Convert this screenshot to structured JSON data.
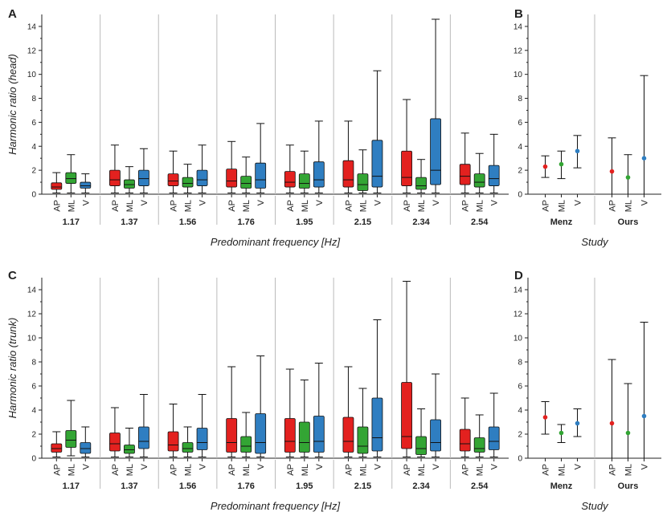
{
  "chart_data": [
    {
      "panel": "A",
      "type": "box",
      "ylabel": "Harmonic ratio (head)",
      "xlabel": "Predominant frequency [Hz]",
      "ylim": [
        0,
        15
      ],
      "yticks": [
        0,
        2,
        4,
        6,
        8,
        10,
        12,
        14
      ],
      "grid": "vertical group separators",
      "groups": [
        "1.17",
        "1.37",
        "1.56",
        "1.76",
        "1.95",
        "2.15",
        "2.34",
        "2.54"
      ],
      "categories": [
        "AP",
        "ML",
        "V"
      ],
      "boxes": [
        [
          [
            0.1,
            0.4,
            0.6,
            0.95,
            1.8
          ],
          [
            0.1,
            0.9,
            1.3,
            1.8,
            3.3
          ],
          [
            0.1,
            0.5,
            0.7,
            1.0,
            1.7
          ]
        ],
        [
          [
            0.1,
            0.7,
            1.2,
            2.0,
            4.1
          ],
          [
            0.1,
            0.5,
            0.8,
            1.2,
            2.3
          ],
          [
            0.1,
            0.7,
            1.3,
            2.0,
            3.8
          ]
        ],
        [
          [
            0.1,
            0.7,
            1.1,
            1.7,
            3.6
          ],
          [
            0.1,
            0.6,
            0.9,
            1.4,
            2.5
          ],
          [
            0.1,
            0.7,
            1.2,
            2.0,
            4.1
          ]
        ],
        [
          [
            0.1,
            0.6,
            1.1,
            2.1,
            4.4
          ],
          [
            0.1,
            0.5,
            0.9,
            1.5,
            3.1
          ],
          [
            0.1,
            0.5,
            1.2,
            2.6,
            5.9
          ]
        ],
        [
          [
            0.1,
            0.6,
            1.0,
            1.9,
            4.1
          ],
          [
            0.1,
            0.5,
            0.9,
            1.7,
            3.6
          ],
          [
            0.1,
            0.6,
            1.2,
            2.7,
            6.1
          ]
        ],
        [
          [
            0.1,
            0.6,
            1.2,
            2.8,
            6.1
          ],
          [
            0.1,
            0.3,
            0.8,
            1.7,
            3.7
          ],
          [
            0.1,
            0.6,
            1.5,
            4.5,
            10.3
          ]
        ],
        [
          [
            0.1,
            0.7,
            1.4,
            3.6,
            7.9
          ],
          [
            0.1,
            0.4,
            0.7,
            1.4,
            2.9
          ],
          [
            0.1,
            0.8,
            2.0,
            6.3,
            14.6
          ]
        ],
        [
          [
            0.1,
            0.8,
            1.5,
            2.5,
            5.1
          ],
          [
            0.1,
            0.6,
            1.0,
            1.7,
            3.4
          ],
          [
            0.1,
            0.7,
            1.3,
            2.4,
            5.0
          ]
        ]
      ]
    },
    {
      "panel": "B",
      "type": "errorbar",
      "xlabel": "Study",
      "ylim": [
        0,
        15
      ],
      "yticks": [
        0,
        2,
        4,
        6,
        8,
        10,
        12,
        14
      ],
      "groups": [
        "Menz",
        "Ours"
      ],
      "categories": [
        "AP",
        "ML",
        "V"
      ],
      "points": [
        [
          [
            2.3,
            1.4,
            3.2
          ],
          [
            2.5,
            1.3,
            3.6
          ],
          [
            3.6,
            2.2,
            4.9
          ]
        ],
        [
          [
            1.9,
            0.0,
            4.7
          ],
          [
            1.4,
            0.0,
            3.3
          ],
          [
            3.0,
            0.0,
            9.9
          ]
        ]
      ]
    },
    {
      "panel": "C",
      "type": "box",
      "ylabel": "Harmonic ratio (trunk)",
      "xlabel": "Predominant frequency [Hz]",
      "ylim": [
        0,
        15
      ],
      "yticks": [
        0,
        2,
        4,
        6,
        8,
        10,
        12,
        14
      ],
      "grid": "vertical group separators",
      "groups": [
        "1.17",
        "1.37",
        "1.56",
        "1.76",
        "1.95",
        "2.15",
        "2.34",
        "2.54"
      ],
      "categories": [
        "AP",
        "ML",
        "V"
      ],
      "boxes": [
        [
          [
            0.1,
            0.5,
            0.8,
            1.2,
            2.2
          ],
          [
            0.2,
            0.9,
            1.5,
            2.3,
            4.8
          ],
          [
            0.1,
            0.4,
            0.8,
            1.3,
            2.6
          ]
        ],
        [
          [
            0.1,
            0.6,
            1.2,
            2.1,
            4.2
          ],
          [
            0.1,
            0.4,
            0.7,
            1.1,
            2.5
          ],
          [
            0.1,
            0.8,
            1.4,
            2.6,
            5.3
          ]
        ],
        [
          [
            0.1,
            0.6,
            1.1,
            2.2,
            4.5
          ],
          [
            0.1,
            0.5,
            0.8,
            1.3,
            2.6
          ],
          [
            0.1,
            0.7,
            1.3,
            2.5,
            5.3
          ]
        ],
        [
          [
            0.1,
            0.5,
            1.3,
            3.3,
            7.6
          ],
          [
            0.1,
            0.5,
            1.0,
            1.8,
            3.8
          ],
          [
            0.1,
            0.4,
            1.3,
            3.7,
            8.5
          ]
        ],
        [
          [
            0.1,
            0.5,
            1.4,
            3.3,
            7.4
          ],
          [
            0.1,
            0.5,
            1.3,
            3.0,
            6.5
          ],
          [
            0.1,
            0.5,
            1.4,
            3.5,
            7.9
          ]
        ],
        [
          [
            0.1,
            0.5,
            1.4,
            3.4,
            7.6
          ],
          [
            0.1,
            0.4,
            1.0,
            2.6,
            5.8
          ],
          [
            0.1,
            0.6,
            1.7,
            5.0,
            11.5
          ]
        ],
        [
          [
            0.1,
            0.8,
            1.8,
            6.3,
            14.7
          ],
          [
            0.1,
            0.3,
            0.8,
            1.8,
            4.1
          ],
          [
            0.1,
            0.6,
            1.3,
            3.2,
            7.0
          ]
        ],
        [
          [
            0.1,
            0.6,
            1.2,
            2.4,
            5.0
          ],
          [
            0.1,
            0.5,
            0.8,
            1.7,
            3.6
          ],
          [
            0.1,
            0.7,
            1.4,
            2.6,
            5.4
          ]
        ]
      ]
    },
    {
      "panel": "D",
      "type": "errorbar",
      "xlabel": "Study",
      "ylim": [
        0,
        15
      ],
      "yticks": [
        0,
        2,
        4,
        6,
        8,
        10,
        12,
        14
      ],
      "groups": [
        "Menz",
        "Ours"
      ],
      "categories": [
        "AP",
        "ML",
        "V"
      ],
      "points": [
        [
          [
            3.4,
            2.0,
            4.7
          ],
          [
            2.1,
            1.3,
            2.8
          ],
          [
            2.9,
            1.8,
            4.1
          ]
        ],
        [
          [
            2.9,
            0.0,
            8.2
          ],
          [
            2.1,
            0.0,
            6.2
          ],
          [
            3.5,
            0.0,
            11.3
          ]
        ]
      ]
    }
  ],
  "colors": {
    "AP": "#e3211f",
    "ML": "#33a534",
    "V": "#2f7ec1",
    "axis": "#222222",
    "sep": "#bbbbbb"
  }
}
